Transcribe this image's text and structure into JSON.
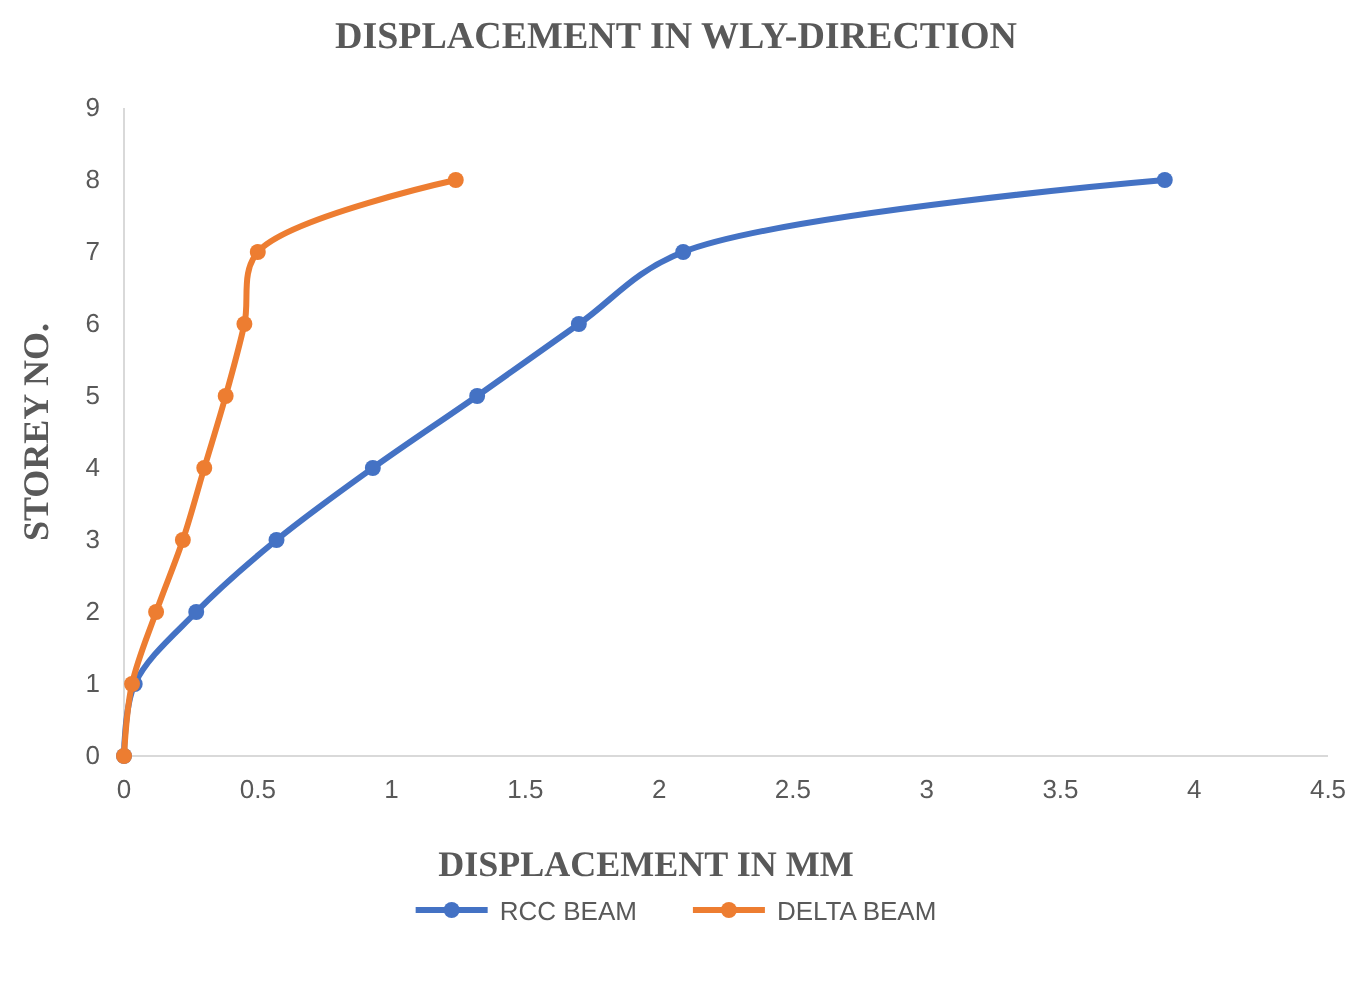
{
  "chart_data": {
    "type": "line",
    "title": "DISPLACEMENT IN WLY-DIRECTION",
    "xlabel": "DISPLACEMENT IN MM",
    "ylabel": "STOREY NO.",
    "xlim": [
      0,
      4.5
    ],
    "xticks": [
      0,
      0.5,
      1,
      1.5,
      2,
      2.5,
      3,
      3.5,
      4,
      4.5
    ],
    "ylim": [
      0,
      9
    ],
    "yticks": [
      0,
      1,
      2,
      3,
      4,
      5,
      6,
      7,
      8,
      9
    ],
    "grid": false,
    "legend": "bottom",
    "marker": "circle",
    "line_style": "solid",
    "series": [
      {
        "name": "RCC BEAM",
        "color": "#4472c4",
        "x": [
          0,
          0.04,
          0.27,
          0.57,
          0.93,
          1.32,
          1.7,
          2.09,
          3.89
        ],
        "values": [
          0,
          1,
          2,
          3,
          4,
          5,
          6,
          7,
          8
        ]
      },
      {
        "name": "DELTA BEAM",
        "color": "#ed7d31",
        "x": [
          0,
          0.03,
          0.12,
          0.22,
          0.3,
          0.38,
          0.45,
          0.5,
          1.24
        ],
        "values": [
          0,
          1,
          2,
          3,
          4,
          5,
          6,
          7,
          8
        ]
      }
    ]
  }
}
